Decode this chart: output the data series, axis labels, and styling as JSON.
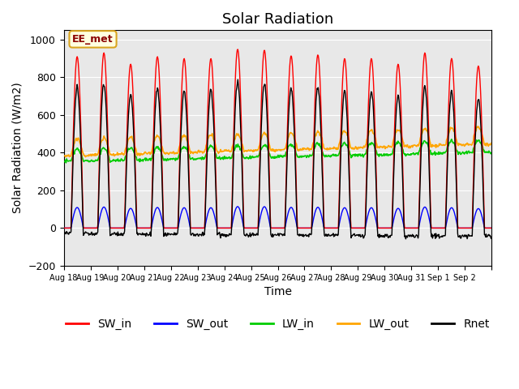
{
  "title": "Solar Radiation",
  "ylabel": "Solar Radiation (W/m2)",
  "xlabel": "Time",
  "ylim": [
    -200,
    1050
  ],
  "xlim_days": 16,
  "n_days": 16,
  "annotation": "EE_met",
  "xtick_labels": [
    "Aug 18",
    "Aug 19",
    "Aug 20",
    "Aug 21",
    "Aug 22",
    "Aug 23",
    "Aug 24",
    "Aug 25",
    "Aug 26",
    "Aug 27",
    "Aug 28",
    "Aug 29",
    "Aug 30",
    "Aug 31",
    "Sep 1",
    "Sep 2"
  ],
  "background_color": "#e8e8e8",
  "figure_color": "#ffffff",
  "SW_in_color": "#ff0000",
  "SW_out_color": "#0000ff",
  "LW_in_color": "#00cc00",
  "LW_out_color": "#ffa500",
  "Rnet_color": "#000000",
  "title_fontsize": 13,
  "label_fontsize": 10,
  "legend_fontsize": 10
}
